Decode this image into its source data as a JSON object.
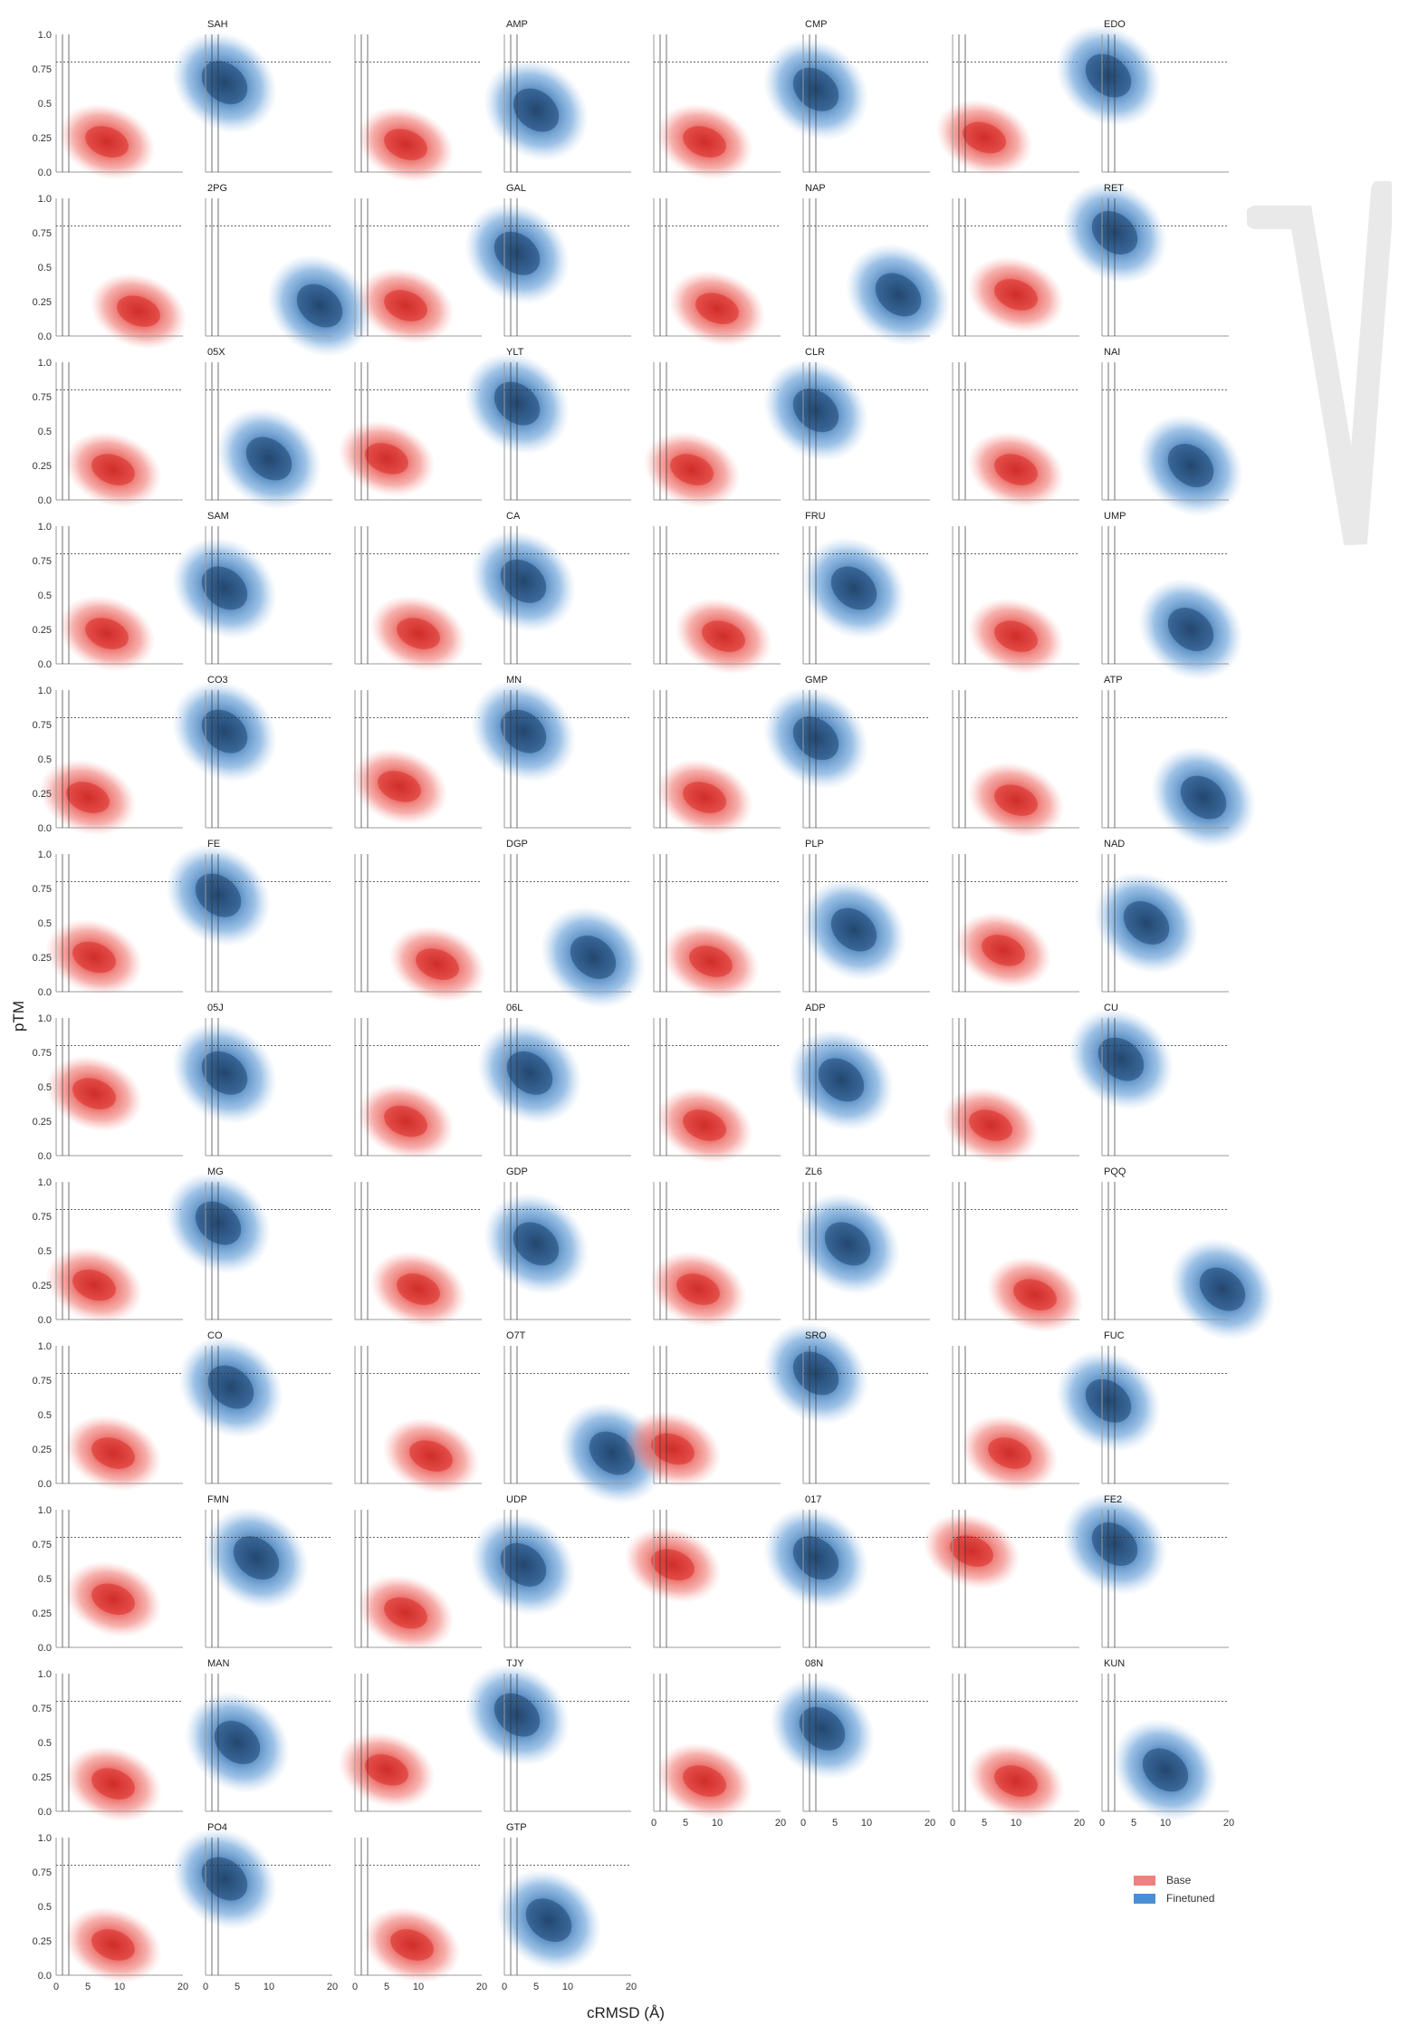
{
  "figure": {
    "ylabel": "pTM",
    "xlabel": "cRMSD (Å)",
    "xticks": [
      "0",
      "5",
      "10",
      "20"
    ],
    "yticks": [
      "0.0",
      "0.25",
      "0.5",
      "0.75",
      "1.0"
    ],
    "legend": [
      {
        "label": "Base",
        "color": "#f08080"
      },
      {
        "label": "Finetuned",
        "color": "#4a8fd4"
      }
    ],
    "colors": {
      "base_dark": "#d62f2a",
      "finetuned_dark": "#1f4e79",
      "threshold_line": "#333333"
    }
  },
  "chart_data": {
    "type": "kde-density-grid",
    "x_range": [
      0,
      20
    ],
    "y_range": [
      0,
      1.0
    ],
    "reference_lines": {
      "x": [
        1,
        2
      ],
      "y": 0.8
    },
    "panels": [
      {
        "label": "",
        "series": "Base",
        "mode": [
          8,
          0.22
        ]
      },
      {
        "label": "SAH",
        "series": "Finetuned",
        "mode": [
          3,
          0.65
        ]
      },
      {
        "label": "",
        "series": "Base",
        "mode": [
          8,
          0.2
        ]
      },
      {
        "label": "AMP",
        "series": "Finetuned",
        "mode": [
          5,
          0.45
        ]
      },
      {
        "label": "",
        "series": "Base",
        "mode": [
          8,
          0.22
        ]
      },
      {
        "label": "CMP",
        "series": "Finetuned",
        "mode": [
          2,
          0.6
        ]
      },
      {
        "label": "",
        "series": "Base",
        "mode": [
          5,
          0.25
        ]
      },
      {
        "label": "EDO",
        "series": "Finetuned",
        "mode": [
          1,
          0.7
        ]
      },
      {
        "label": "",
        "series": "Base",
        "mode": [
          13,
          0.18
        ]
      },
      {
        "label": "2PG",
        "series": "Finetuned",
        "mode": [
          18,
          0.22
        ]
      },
      {
        "label": "",
        "series": "Base",
        "mode": [
          8,
          0.22
        ]
      },
      {
        "label": "GAL",
        "series": "Finetuned",
        "mode": [
          2,
          0.6
        ]
      },
      {
        "label": "",
        "series": "Base",
        "mode": [
          10,
          0.2
        ]
      },
      {
        "label": "NAP",
        "series": "Finetuned",
        "mode": [
          15,
          0.3
        ]
      },
      {
        "label": "",
        "series": "Base",
        "mode": [
          10,
          0.3
        ]
      },
      {
        "label": "RET",
        "series": "Finetuned",
        "mode": [
          2,
          0.75
        ]
      },
      {
        "label": "",
        "series": "Base",
        "mode": [
          9,
          0.22
        ]
      },
      {
        "label": "05X",
        "series": "Finetuned",
        "mode": [
          10,
          0.3
        ]
      },
      {
        "label": "",
        "series": "Base",
        "mode": [
          5,
          0.3
        ]
      },
      {
        "label": "YLT",
        "series": "Finetuned",
        "mode": [
          2,
          0.7
        ]
      },
      {
        "label": "",
        "series": "Base",
        "mode": [
          6,
          0.22
        ]
      },
      {
        "label": "CLR",
        "series": "Finetuned",
        "mode": [
          2,
          0.65
        ]
      },
      {
        "label": "",
        "series": "Base",
        "mode": [
          10,
          0.22
        ]
      },
      {
        "label": "NAI",
        "series": "Finetuned",
        "mode": [
          14,
          0.25
        ]
      },
      {
        "label": "",
        "series": "Base",
        "mode": [
          8,
          0.22
        ]
      },
      {
        "label": "SAM",
        "series": "Finetuned",
        "mode": [
          3,
          0.55
        ]
      },
      {
        "label": "",
        "series": "Base",
        "mode": [
          10,
          0.22
        ]
      },
      {
        "label": "CA",
        "series": "Finetuned",
        "mode": [
          3,
          0.6
        ]
      },
      {
        "label": "",
        "series": "Base",
        "mode": [
          11,
          0.2
        ]
      },
      {
        "label": "FRU",
        "series": "Finetuned",
        "mode": [
          8,
          0.55
        ]
      },
      {
        "label": "",
        "series": "Base",
        "mode": [
          10,
          0.2
        ]
      },
      {
        "label": "UMP",
        "series": "Finetuned",
        "mode": [
          14,
          0.25
        ]
      },
      {
        "label": "",
        "series": "Base",
        "mode": [
          5,
          0.22
        ]
      },
      {
        "label": "CO3",
        "series": "Finetuned",
        "mode": [
          3,
          0.7
        ]
      },
      {
        "label": "",
        "series": "Base",
        "mode": [
          7,
          0.3
        ]
      },
      {
        "label": "MN",
        "series": "Finetuned",
        "mode": [
          3,
          0.7
        ]
      },
      {
        "label": "",
        "series": "Base",
        "mode": [
          8,
          0.22
        ]
      },
      {
        "label": "GMP",
        "series": "Finetuned",
        "mode": [
          2,
          0.65
        ]
      },
      {
        "label": "",
        "series": "Base",
        "mode": [
          10,
          0.2
        ]
      },
      {
        "label": "ATP",
        "series": "Finetuned",
        "mode": [
          16,
          0.22
        ]
      },
      {
        "label": "",
        "series": "Base",
        "mode": [
          6,
          0.25
        ]
      },
      {
        "label": "FE",
        "series": "Finetuned",
        "mode": [
          2,
          0.7
        ]
      },
      {
        "label": "",
        "series": "Base",
        "mode": [
          13,
          0.2
        ]
      },
      {
        "label": "DGP",
        "series": "Finetuned",
        "mode": [
          14,
          0.25
        ]
      },
      {
        "label": "",
        "series": "Base",
        "mode": [
          9,
          0.22
        ]
      },
      {
        "label": "PLP",
        "series": "Finetuned",
        "mode": [
          8,
          0.45
        ]
      },
      {
        "label": "",
        "series": "Base",
        "mode": [
          8,
          0.3
        ]
      },
      {
        "label": "NAD",
        "series": "Finetuned",
        "mode": [
          7,
          0.5
        ]
      },
      {
        "label": "",
        "series": "Base",
        "mode": [
          6,
          0.45
        ]
      },
      {
        "label": "05J",
        "series": "Finetuned",
        "mode": [
          3,
          0.6
        ]
      },
      {
        "label": "",
        "series": "Base",
        "mode": [
          8,
          0.25
        ]
      },
      {
        "label": "06L",
        "series": "Finetuned",
        "mode": [
          4,
          0.6
        ]
      },
      {
        "label": "",
        "series": "Base",
        "mode": [
          8,
          0.22
        ]
      },
      {
        "label": "ADP",
        "series": "Finetuned",
        "mode": [
          6,
          0.55
        ]
      },
      {
        "label": "",
        "series": "Base",
        "mode": [
          6,
          0.22
        ]
      },
      {
        "label": "CU",
        "series": "Finetuned",
        "mode": [
          3,
          0.7
        ]
      },
      {
        "label": "",
        "series": "Base",
        "mode": [
          6,
          0.25
        ]
      },
      {
        "label": "MG",
        "series": "Finetuned",
        "mode": [
          2,
          0.7
        ]
      },
      {
        "label": "",
        "series": "Base",
        "mode": [
          10,
          0.22
        ]
      },
      {
        "label": "GDP",
        "series": "Finetuned",
        "mode": [
          5,
          0.55
        ]
      },
      {
        "label": "",
        "series": "Base",
        "mode": [
          7,
          0.22
        ]
      },
      {
        "label": "ZL6",
        "series": "Finetuned",
        "mode": [
          7,
          0.55
        ]
      },
      {
        "label": "",
        "series": "Base",
        "mode": [
          13,
          0.18
        ]
      },
      {
        "label": "PQQ",
        "series": "Finetuned",
        "mode": [
          19,
          0.22
        ]
      },
      {
        "label": "",
        "series": "Base",
        "mode": [
          9,
          0.22
        ]
      },
      {
        "label": "CO",
        "series": "Finetuned",
        "mode": [
          4,
          0.7
        ]
      },
      {
        "label": "",
        "series": "Base",
        "mode": [
          12,
          0.2
        ]
      },
      {
        "label": "O7T",
        "series": "Finetuned",
        "mode": [
          17,
          0.22
        ]
      },
      {
        "label": "",
        "series": "Base",
        "mode": [
          3,
          0.25
        ]
      },
      {
        "label": "SRO",
        "series": "Finetuned",
        "mode": [
          2,
          0.8
        ]
      },
      {
        "label": "",
        "series": "Base",
        "mode": [
          9,
          0.22
        ]
      },
      {
        "label": "FUC",
        "series": "Finetuned",
        "mode": [
          1,
          0.6
        ]
      },
      {
        "label": "",
        "series": "Base",
        "mode": [
          9,
          0.35
        ]
      },
      {
        "label": "FMN",
        "series": "Finetuned",
        "mode": [
          8,
          0.65
        ]
      },
      {
        "label": "",
        "series": "Base",
        "mode": [
          8,
          0.25
        ]
      },
      {
        "label": "UDP",
        "series": "Finetuned",
        "mode": [
          3,
          0.6
        ]
      },
      {
        "label": "",
        "series": "Base",
        "mode": [
          3,
          0.6
        ]
      },
      {
        "label": "017",
        "series": "Finetuned",
        "mode": [
          2,
          0.65
        ]
      },
      {
        "label": "",
        "series": "Base",
        "mode": [
          3,
          0.7
        ]
      },
      {
        "label": "FE2",
        "series": "Finetuned",
        "mode": [
          2,
          0.75
        ]
      },
      {
        "label": "",
        "series": "Base",
        "mode": [
          9,
          0.2
        ]
      },
      {
        "label": "MAN",
        "series": "Finetuned",
        "mode": [
          5,
          0.5
        ]
      },
      {
        "label": "",
        "series": "Base",
        "mode": [
          5,
          0.3
        ]
      },
      {
        "label": "TJY",
        "series": "Finetuned",
        "mode": [
          2,
          0.7
        ]
      },
      {
        "label": "",
        "series": "Base",
        "mode": [
          8,
          0.22
        ]
      },
      {
        "label": "08N",
        "series": "Finetuned",
        "mode": [
          3,
          0.6
        ]
      },
      {
        "label": "",
        "series": "Base",
        "mode": [
          10,
          0.22
        ]
      },
      {
        "label": "KUN",
        "series": "Finetuned",
        "mode": [
          10,
          0.3
        ]
      },
      {
        "label": "",
        "series": "Base",
        "mode": [
          9,
          0.22
        ]
      },
      {
        "label": "PO4",
        "series": "Finetuned",
        "mode": [
          3,
          0.7
        ]
      },
      {
        "label": "",
        "series": "Base",
        "mode": [
          9,
          0.22
        ]
      },
      {
        "label": "GTP",
        "series": "Finetuned",
        "mode": [
          7,
          0.4
        ]
      }
    ]
  }
}
